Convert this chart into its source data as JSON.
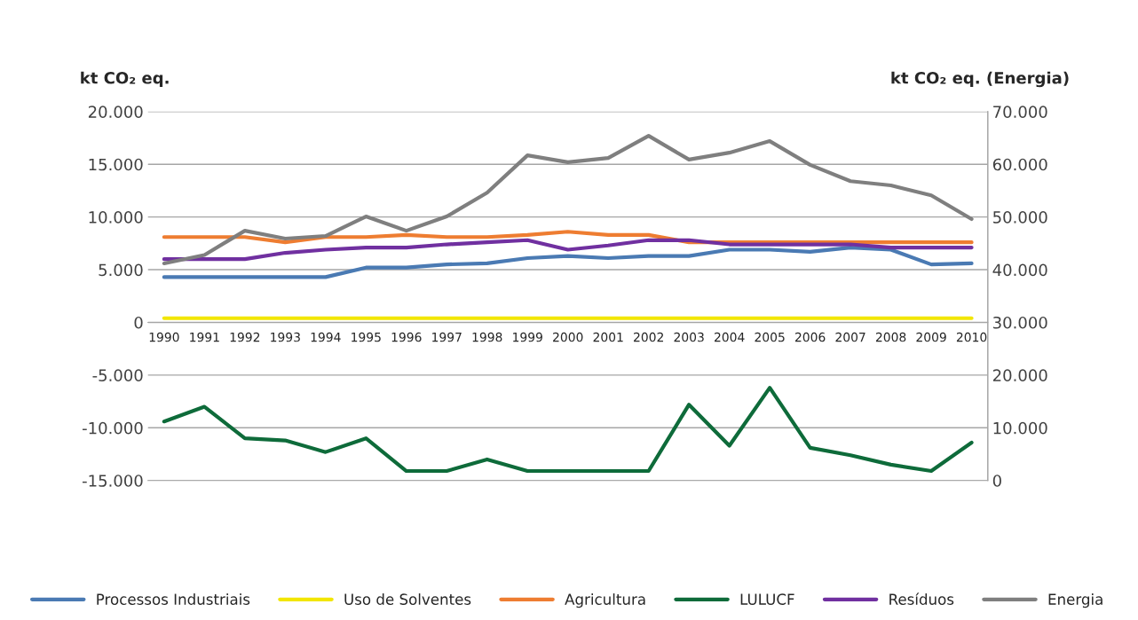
{
  "chart_data": {
    "type": "line",
    "categories": [
      "1990",
      "1991",
      "1992",
      "1993",
      "1994",
      "1995",
      "1996",
      "1997",
      "1998",
      "1999",
      "2000",
      "2001",
      "2002",
      "2003",
      "2004",
      "2005",
      "2006",
      "2007",
      "2008",
      "2009",
      "2010"
    ],
    "ylabel": "kt CO₂ eq.",
    "y2label": "kt CO₂ eq. (Energia)",
    "ylim": [
      -15000,
      20000
    ],
    "yticks": [
      {
        "value": -15000,
        "label": "-15.000"
      },
      {
        "value": -10000,
        "label": "-10.000"
      },
      {
        "value": -5000,
        "label": "-5.000"
      },
      0,
      {
        "value": 5000,
        "label": "5.000"
      },
      {
        "value": 10000,
        "label": "10.000"
      },
      {
        "value": 15000,
        "label": "15.000"
      },
      {
        "value": 20000,
        "label": "20.000"
      }
    ],
    "y2lim": [
      0,
      70000
    ],
    "y2ticks": [
      0,
      {
        "value": 10000,
        "label": "10.000"
      },
      {
        "value": 20000,
        "label": "20.000"
      },
      {
        "value": 30000,
        "label": "30.000"
      },
      {
        "value": 40000,
        "label": "40.000"
      },
      {
        "value": 50000,
        "label": "50.000"
      },
      {
        "value": 60000,
        "label": "60.000"
      },
      {
        "value": 70000,
        "label": "70.000"
      }
    ],
    "grid": "y",
    "legend": "bottom",
    "marker": "none",
    "line_style": "solid",
    "series": [
      {
        "name": "Processos Industriais",
        "color": "#4a7ab3",
        "values": [
          4300,
          4300,
          4300,
          4300,
          4300,
          5200,
          5200,
          5500,
          5600,
          6100,
          6300,
          6100,
          6300,
          6300,
          6900,
          6900,
          6700,
          7100,
          6900,
          5500,
          5600
        ]
      },
      {
        "name": "Uso de Solventes",
        "color": "#f2e600",
        "values": [
          400,
          400,
          400,
          400,
          400,
          400,
          400,
          400,
          400,
          400,
          400,
          400,
          400,
          400,
          400,
          400,
          400,
          400,
          400,
          400,
          400
        ]
      },
      {
        "name": "Agricultura",
        "color": "#ee7d31",
        "values": [
          8100,
          8100,
          8100,
          7600,
          8100,
          8100,
          8300,
          8100,
          8100,
          8300,
          8600,
          8300,
          8300,
          7600,
          7600,
          7600,
          7600,
          7600,
          7600,
          7600,
          7600
        ]
      },
      {
        "name": "LULUCF",
        "color": "#0e6b3a",
        "values": [
          -9400,
          -8000,
          -11000,
          -11200,
          -12300,
          -11000,
          -14100,
          -14100,
          -13000,
          -14100,
          -14100,
          -14100,
          -14100,
          -7800,
          -11700,
          -6200,
          -11900,
          -12600,
          -13500,
          -14100,
          -11400
        ]
      },
      {
        "name": "Resíduos",
        "color": "#7030a0",
        "values": [
          6000,
          6000,
          6000,
          6600,
          6900,
          7100,
          7100,
          7400,
          7600,
          7800,
          6900,
          7300,
          7800,
          7800,
          7400,
          7400,
          7400,
          7400,
          7100,
          7100,
          7100
        ]
      },
      {
        "name": "Energia",
        "color": "#7f7f7f",
        "axis": "y2",
        "values": [
          41200,
          42800,
          47400,
          45900,
          46400,
          50100,
          47400,
          50100,
          54600,
          61700,
          60400,
          61200,
          65400,
          60900,
          62200,
          64400,
          59900,
          56800,
          56000,
          54100,
          49600
        ]
      }
    ]
  }
}
